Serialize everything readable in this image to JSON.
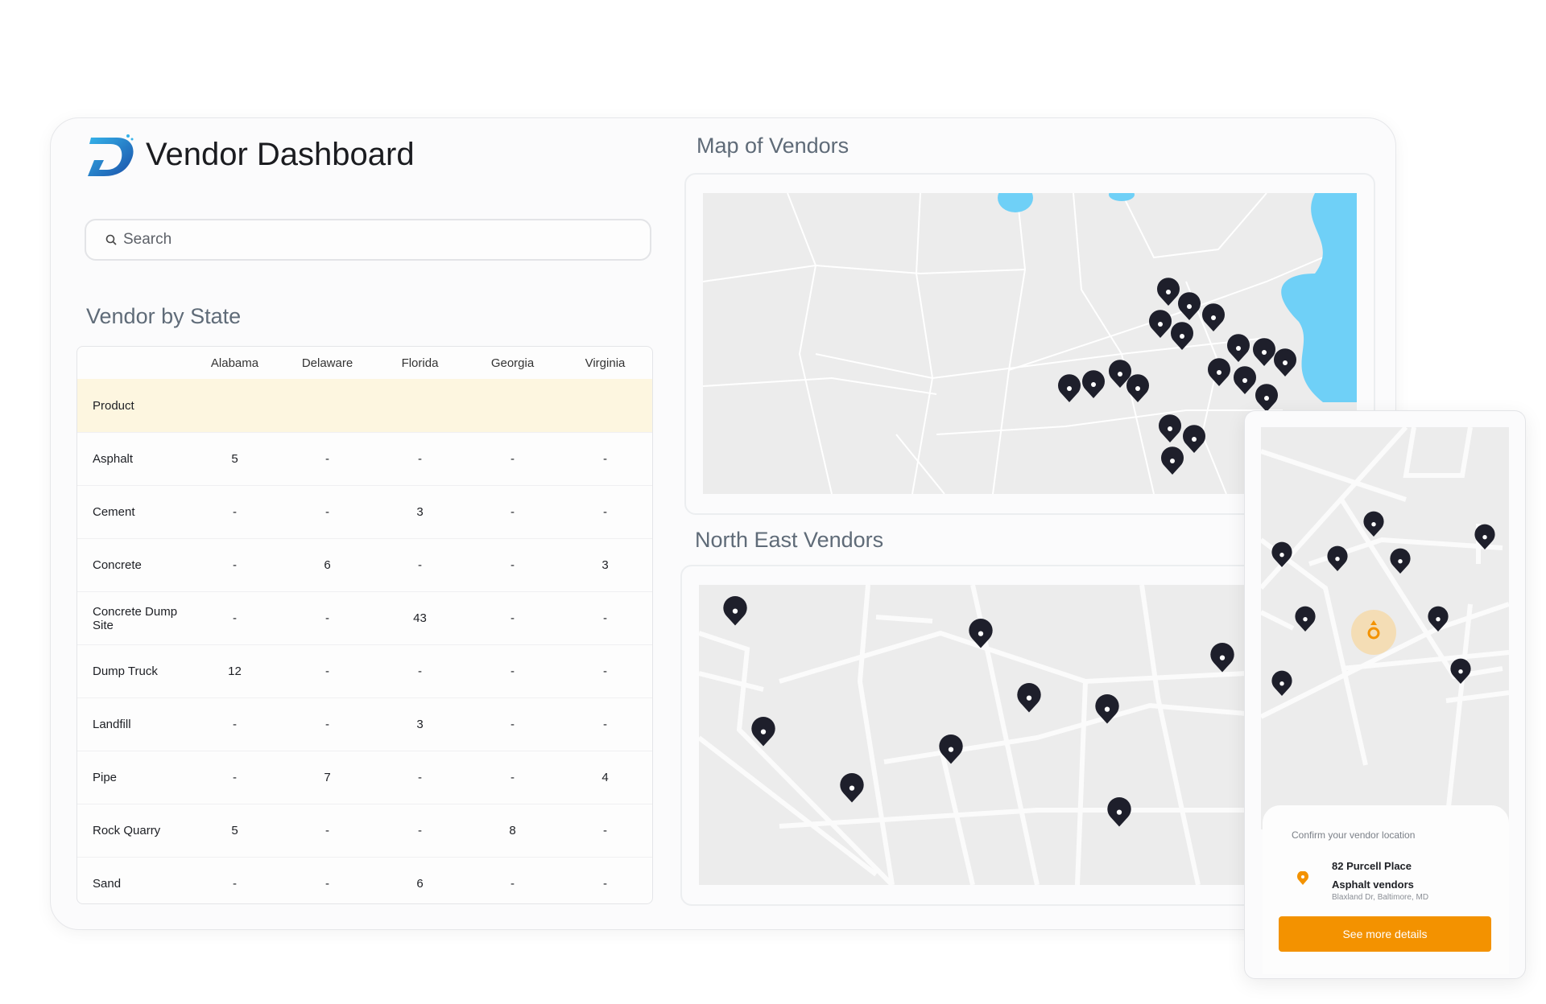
{
  "header": {
    "title": "Vendor Dashboard",
    "logo_letter": "D"
  },
  "search": {
    "placeholder": "Search",
    "value": ""
  },
  "vendor_by_state": {
    "title": "Vendor by State",
    "columns": [
      "Alabama",
      "Delaware",
      "Florida",
      "Georgia",
      "Virginia"
    ],
    "product_label": "Product",
    "rows": [
      {
        "product": "Asphalt",
        "values": [
          "5",
          "-",
          "-",
          "-",
          "-"
        ]
      },
      {
        "product": "Cement",
        "values": [
          "-",
          "-",
          "3",
          "-",
          "-"
        ]
      },
      {
        "product": "Concrete",
        "values": [
          "-",
          "6",
          "-",
          "-",
          "3"
        ]
      },
      {
        "product": "Concrete Dump Site",
        "values": [
          "-",
          "-",
          "43",
          "-",
          "-"
        ]
      },
      {
        "product": "Dump Truck",
        "values": [
          "12",
          "-",
          "-",
          "-",
          "-"
        ]
      },
      {
        "product": "Landfill",
        "values": [
          "-",
          "-",
          "3",
          "-",
          "-"
        ]
      },
      {
        "product": "Pipe",
        "values": [
          "-",
          "7",
          "-",
          "-",
          "4"
        ]
      },
      {
        "product": "Rock Quarry",
        "values": [
          "5",
          "-",
          "-",
          "8",
          "-"
        ]
      },
      {
        "product": "Sand",
        "values": [
          "-",
          "-",
          "6",
          "-",
          "-"
        ]
      }
    ]
  },
  "map_of_vendors": {
    "title": "Map of Vendors"
  },
  "north_east": {
    "title": "North East Vendors"
  },
  "phone": {
    "confirm_label": "Confirm your vendor location",
    "address": "82 Purcell Place",
    "vendor_type": "Asphalt vendors",
    "street": "Blaxland Dr, Baltimore, MD",
    "button": "See more details"
  },
  "colors": {
    "accent": "#f39200",
    "pin": "#1e1f2b",
    "water": "#6fd0f7",
    "brand_blue": "#1f77c8",
    "highlight_row": "#fdf6e0"
  }
}
